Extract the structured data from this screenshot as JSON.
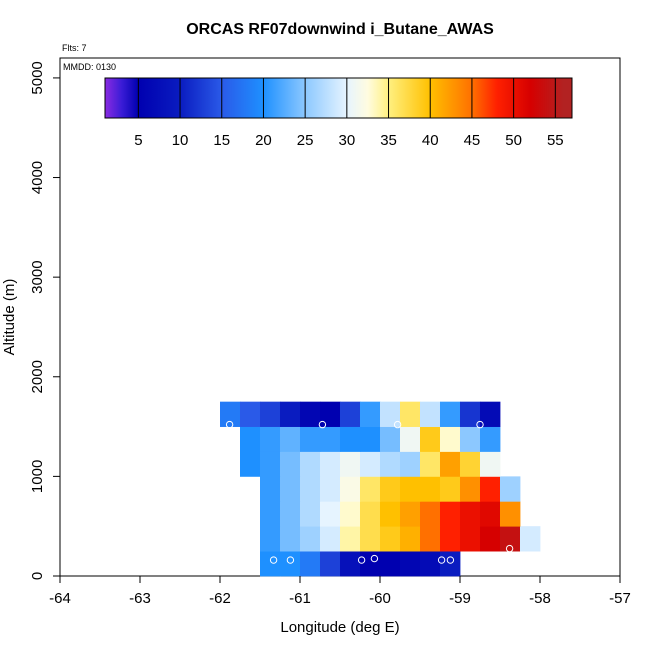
{
  "chart_data": {
    "type": "heatmap",
    "title": "ORCAS RF07downwind i_Butane_AWAS",
    "flts_label": "Flts: 7",
    "date_label": "MMDD: 0130",
    "xlabel": "Longitude (deg E)",
    "ylabel": "Altitude (m)",
    "xlim": [
      -64,
      -57
    ],
    "ylim": [
      0,
      5200
    ],
    "xticks": [
      -64,
      -63,
      -62,
      -61,
      -60,
      -59,
      -58,
      -57
    ],
    "yticks": [
      0,
      1000,
      2000,
      3000,
      4000,
      5000
    ],
    "x_cell_width_deg": 0.25,
    "y_cell_height_m": 250,
    "colorbar": {
      "min": 1,
      "max": 57,
      "ticks": [
        5,
        10,
        15,
        20,
        25,
        30,
        35,
        40,
        45,
        50,
        55
      ],
      "stops": [
        {
          "v": 1,
          "c": "#8a2be2"
        },
        {
          "v": 3,
          "c": "#3a1cd6"
        },
        {
          "v": 5,
          "c": "#0000b0"
        },
        {
          "v": 10,
          "c": "#0a1cc0"
        },
        {
          "v": 15,
          "c": "#2a5ae8"
        },
        {
          "v": 20,
          "c": "#1e90ff"
        },
        {
          "v": 25,
          "c": "#8cc8ff"
        },
        {
          "v": 30,
          "c": "#e6f4ff"
        },
        {
          "v": 32.5,
          "c": "#fffce0"
        },
        {
          "v": 35,
          "c": "#fff080"
        },
        {
          "v": 40,
          "c": "#ffc000"
        },
        {
          "v": 45,
          "c": "#ff7000"
        },
        {
          "v": 48,
          "c": "#ff2000"
        },
        {
          "v": 52,
          "c": "#d60000"
        },
        {
          "v": 56,
          "c": "#b22222"
        },
        {
          "v": 57,
          "c": "#b22222"
        }
      ]
    },
    "cells": [
      {
        "lon": -61.5,
        "alt": 0,
        "v": 20
      },
      {
        "lon": -61.25,
        "alt": 0,
        "v": 20
      },
      {
        "lon": -61.0,
        "alt": 0,
        "v": 18
      },
      {
        "lon": -60.75,
        "alt": 0,
        "v": 13
      },
      {
        "lon": -60.5,
        "alt": 0,
        "v": 8
      },
      {
        "lon": -60.25,
        "alt": 0,
        "v": 5
      },
      {
        "lon": -60.0,
        "alt": 0,
        "v": 5
      },
      {
        "lon": -59.75,
        "alt": 0,
        "v": 6
      },
      {
        "lon": -59.5,
        "alt": 0,
        "v": 7
      },
      {
        "lon": -59.25,
        "alt": 0,
        "v": 10
      },
      {
        "lon": -61.5,
        "alt": 250,
        "v": 21
      },
      {
        "lon": -61.25,
        "alt": 250,
        "v": 24
      },
      {
        "lon": -61.0,
        "alt": 250,
        "v": 26
      },
      {
        "lon": -60.75,
        "alt": 250,
        "v": 29
      },
      {
        "lon": -60.5,
        "alt": 250,
        "v": 34
      },
      {
        "lon": -60.25,
        "alt": 250,
        "v": 37
      },
      {
        "lon": -60.0,
        "alt": 250,
        "v": 39
      },
      {
        "lon": -59.75,
        "alt": 250,
        "v": 41
      },
      {
        "lon": -59.5,
        "alt": 250,
        "v": 45
      },
      {
        "lon": -59.25,
        "alt": 250,
        "v": 48
      },
      {
        "lon": -59.0,
        "alt": 250,
        "v": 50
      },
      {
        "lon": -58.75,
        "alt": 250,
        "v": 52
      },
      {
        "lon": -58.5,
        "alt": 250,
        "v": 54
      },
      {
        "lon": -58.25,
        "alt": 250,
        "v": 29
      },
      {
        "lon": -61.5,
        "alt": 500,
        "v": 21
      },
      {
        "lon": -61.25,
        "alt": 500,
        "v": 24
      },
      {
        "lon": -61.0,
        "alt": 500,
        "v": 27
      },
      {
        "lon": -60.75,
        "alt": 500,
        "v": 30
      },
      {
        "lon": -60.5,
        "alt": 500,
        "v": 33
      },
      {
        "lon": -60.25,
        "alt": 500,
        "v": 37
      },
      {
        "lon": -60.0,
        "alt": 500,
        "v": 40
      },
      {
        "lon": -59.75,
        "alt": 500,
        "v": 42
      },
      {
        "lon": -59.5,
        "alt": 500,
        "v": 45
      },
      {
        "lon": -59.25,
        "alt": 500,
        "v": 48
      },
      {
        "lon": -59.0,
        "alt": 500,
        "v": 50
      },
      {
        "lon": -58.75,
        "alt": 500,
        "v": 51
      },
      {
        "lon": -58.5,
        "alt": 500,
        "v": 43
      },
      {
        "lon": -61.5,
        "alt": 750,
        "v": 21
      },
      {
        "lon": -61.25,
        "alt": 750,
        "v": 24
      },
      {
        "lon": -61.0,
        "alt": 750,
        "v": 27
      },
      {
        "lon": -60.75,
        "alt": 750,
        "v": 29
      },
      {
        "lon": -60.5,
        "alt": 750,
        "v": 32
      },
      {
        "lon": -60.25,
        "alt": 750,
        "v": 36
      },
      {
        "lon": -60.0,
        "alt": 750,
        "v": 39
      },
      {
        "lon": -59.75,
        "alt": 750,
        "v": 40
      },
      {
        "lon": -59.5,
        "alt": 750,
        "v": 40
      },
      {
        "lon": -59.25,
        "alt": 750,
        "v": 39
      },
      {
        "lon": -59.0,
        "alt": 750,
        "v": 43
      },
      {
        "lon": -58.75,
        "alt": 750,
        "v": 48
      },
      {
        "lon": -58.5,
        "alt": 750,
        "v": 26
      },
      {
        "lon": -61.75,
        "alt": 1000,
        "v": 20
      },
      {
        "lon": -61.5,
        "alt": 1000,
        "v": 21
      },
      {
        "lon": -61.25,
        "alt": 1000,
        "v": 24
      },
      {
        "lon": -61.0,
        "alt": 1000,
        "v": 27
      },
      {
        "lon": -60.75,
        "alt": 1000,
        "v": 29
      },
      {
        "lon": -60.5,
        "alt": 1000,
        "v": 31
      },
      {
        "lon": -60.25,
        "alt": 1000,
        "v": 29
      },
      {
        "lon": -60.0,
        "alt": 1000,
        "v": 27
      },
      {
        "lon": -59.75,
        "alt": 1000,
        "v": 26
      },
      {
        "lon": -59.5,
        "alt": 1000,
        "v": 36
      },
      {
        "lon": -59.25,
        "alt": 1000,
        "v": 42
      },
      {
        "lon": -59.0,
        "alt": 1000,
        "v": 38
      },
      {
        "lon": -58.75,
        "alt": 1000,
        "v": 31
      },
      {
        "lon": -61.75,
        "alt": 1250,
        "v": 20
      },
      {
        "lon": -61.5,
        "alt": 1250,
        "v": 21
      },
      {
        "lon": -61.25,
        "alt": 1250,
        "v": 23
      },
      {
        "lon": -61.0,
        "alt": 1250,
        "v": 21
      },
      {
        "lon": -60.75,
        "alt": 1250,
        "v": 21
      },
      {
        "lon": -60.5,
        "alt": 1250,
        "v": 20
      },
      {
        "lon": -60.25,
        "alt": 1250,
        "v": 20
      },
      {
        "lon": -60.0,
        "alt": 1250,
        "v": 24
      },
      {
        "lon": -59.75,
        "alt": 1250,
        "v": 31
      },
      {
        "lon": -59.5,
        "alt": 1250,
        "v": 39
      },
      {
        "lon": -59.25,
        "alt": 1250,
        "v": 33
      },
      {
        "lon": -59.0,
        "alt": 1250,
        "v": 25
      },
      {
        "lon": -58.75,
        "alt": 1250,
        "v": 21
      },
      {
        "lon": -62.0,
        "alt": 1500,
        "v": 18
      },
      {
        "lon": -61.75,
        "alt": 1500,
        "v": 15
      },
      {
        "lon": -61.5,
        "alt": 1500,
        "v": 13
      },
      {
        "lon": -61.25,
        "alt": 1500,
        "v": 10
      },
      {
        "lon": -61.0,
        "alt": 1500,
        "v": 6
      },
      {
        "lon": -60.75,
        "alt": 1500,
        "v": 5
      },
      {
        "lon": -60.5,
        "alt": 1500,
        "v": 13
      },
      {
        "lon": -60.25,
        "alt": 1500,
        "v": 21
      },
      {
        "lon": -60.0,
        "alt": 1500,
        "v": 28
      },
      {
        "lon": -59.75,
        "alt": 1500,
        "v": 36
      },
      {
        "lon": -59.5,
        "alt": 1500,
        "v": 28
      },
      {
        "lon": -59.25,
        "alt": 1500,
        "v": 21
      },
      {
        "lon": -59.0,
        "alt": 1500,
        "v": 12
      },
      {
        "lon": -58.75,
        "alt": 1500,
        "v": 7
      }
    ],
    "points": [
      {
        "lon": -61.88,
        "alt": 1520
      },
      {
        "lon": -60.72,
        "alt": 1520
      },
      {
        "lon": -59.78,
        "alt": 1520
      },
      {
        "lon": -58.75,
        "alt": 1520
      },
      {
        "lon": -61.33,
        "alt": 160
      },
      {
        "lon": -61.12,
        "alt": 160
      },
      {
        "lon": -60.23,
        "alt": 160
      },
      {
        "lon": -60.07,
        "alt": 175
      },
      {
        "lon": -59.23,
        "alt": 160
      },
      {
        "lon": -59.12,
        "alt": 160
      },
      {
        "lon": -58.38,
        "alt": 275
      }
    ]
  }
}
